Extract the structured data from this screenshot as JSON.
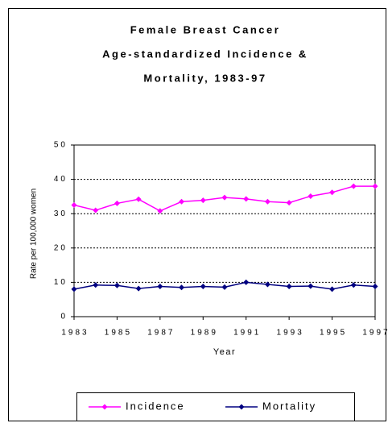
{
  "chart_data": {
    "type": "line",
    "title": [
      "Female Breast Cancer",
      "Age-standardized Incidence &",
      "Mortality, 1983-97"
    ],
    "x_label": "Year",
    "y_label": "Rate per 100,000 women",
    "x": [
      1983,
      1984,
      1985,
      1986,
      1987,
      1988,
      1989,
      1990,
      1991,
      1992,
      1993,
      1994,
      1995,
      1996,
      1997
    ],
    "series": [
      {
        "name": "Incidence",
        "color": "#ff00ff",
        "values": [
          32.5,
          31,
          33,
          34.2,
          30.8,
          33.5,
          33.9,
          34.7,
          34.3,
          33.5,
          33.2,
          35.1,
          36.2,
          38,
          38
        ]
      },
      {
        "name": "Mortality",
        "color": "#000080",
        "values": [
          8,
          9.2,
          9.1,
          8.2,
          8.8,
          8.5,
          8.8,
          8.6,
          10,
          9.4,
          8.8,
          8.9,
          8,
          9.2,
          8.8
        ]
      }
    ],
    "xlim": [
      1983,
      1997
    ],
    "xticks": [
      1983,
      1985,
      1987,
      1989,
      1991,
      1993,
      1995,
      1997
    ],
    "ylim": [
      0,
      50
    ],
    "yticks": [
      0,
      10,
      20,
      30,
      40,
      50
    ],
    "grid": true,
    "legend": "bottom"
  }
}
